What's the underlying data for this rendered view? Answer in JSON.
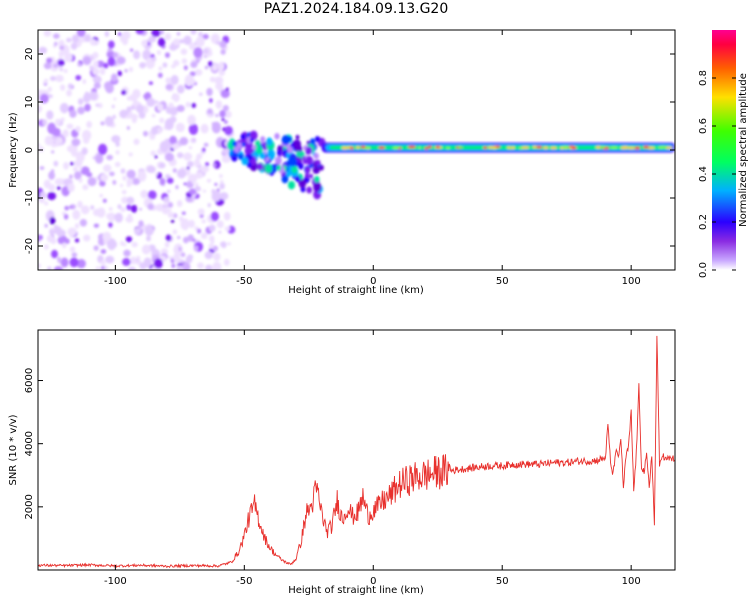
{
  "title": "PAZ1.2024.184.09.13.G20",
  "chart_data": [
    {
      "type": "heatmap",
      "xlabel": "Height of straight line (km)",
      "ylabel": "Frequency (Hz)",
      "xlim": [
        -130,
        117
      ],
      "ylim": [
        -25,
        25
      ],
      "xticks": [
        -100,
        -50,
        0,
        50,
        100
      ],
      "yticks": [
        -20,
        -10,
        0,
        10,
        20
      ],
      "colorbar": {
        "label": "Normalized spectral amplitude",
        "range": [
          0,
          1
        ],
        "ticks": [
          0.0,
          0.2,
          0.4,
          0.6,
          0.8
        ],
        "colormap": "gist_rainbow_r (white at 0)"
      },
      "features": [
        {
          "region": "noise",
          "x_range": [
            -130,
            -55
          ],
          "y_range": [
            -25,
            25
          ],
          "amplitude": 0.15
        },
        {
          "region": "multipath",
          "x_range": [
            -55,
            -20
          ],
          "y_range": [
            -12,
            6
          ],
          "amplitude": 0.35
        },
        {
          "region": "carrier",
          "x_range": [
            -20,
            117
          ],
          "y_center": 0.5,
          "amplitude": 0.6
        }
      ]
    },
    {
      "type": "line",
      "xlabel": "Height of straight line (km)",
      "ylabel": "SNR (10 * v/v)",
      "xlim": [
        -130,
        117
      ],
      "ylim": [
        0,
        7600
      ],
      "xticks": [
        -100,
        -50,
        0,
        50,
        100
      ],
      "yticks": [
        2000,
        4000,
        6000
      ],
      "color": "#e8302c",
      "series": [
        {
          "x": [
            -130,
            -120,
            -110,
            -100,
            -90,
            -80,
            -70,
            -60,
            -55,
            -52,
            -50,
            -48,
            -46,
            -44,
            -42,
            -40,
            -38,
            -36,
            -34,
            -32,
            -30,
            -28,
            -26,
            -24,
            -22,
            -20,
            -18,
            -16,
            -14,
            -12,
            -10,
            -8,
            -6,
            -4,
            -2,
            0,
            2,
            4,
            6,
            8,
            10,
            15,
            20,
            25,
            30,
            35,
            40,
            45,
            50,
            55,
            60,
            65,
            70,
            75,
            80,
            85,
            88,
            90,
            91,
            92,
            93,
            94,
            95,
            96,
            97,
            98,
            99,
            100,
            101,
            102,
            103,
            104,
            105,
            106,
            107,
            108,
            109,
            110,
            111,
            112,
            113,
            114,
            115,
            117
          ],
          "y": [
            150,
            140,
            160,
            130,
            150,
            120,
            140,
            130,
            250,
            600,
            1100,
            1700,
            2050,
            1500,
            1000,
            700,
            500,
            350,
            250,
            180,
            350,
            900,
            1800,
            2000,
            2600,
            1800,
            1200,
            1400,
            2200,
            1600,
            2000,
            1700,
            1800,
            2300,
            1700,
            1900,
            2000,
            2200,
            2300,
            2500,
            2700,
            2900,
            3000,
            3100,
            3150,
            3200,
            3250,
            3300,
            3300,
            3350,
            3350,
            3350,
            3400,
            3400,
            3450,
            3450,
            3500,
            3550,
            4600,
            3400,
            3000,
            3800,
            3500,
            4200,
            2600,
            3600,
            3900,
            5000,
            2500,
            3700,
            5800,
            3300,
            3100,
            3600,
            2600,
            3700,
            1400,
            7400,
            3300,
            3700,
            3500,
            3500,
            3550,
            3500
          ]
        }
      ]
    }
  ]
}
